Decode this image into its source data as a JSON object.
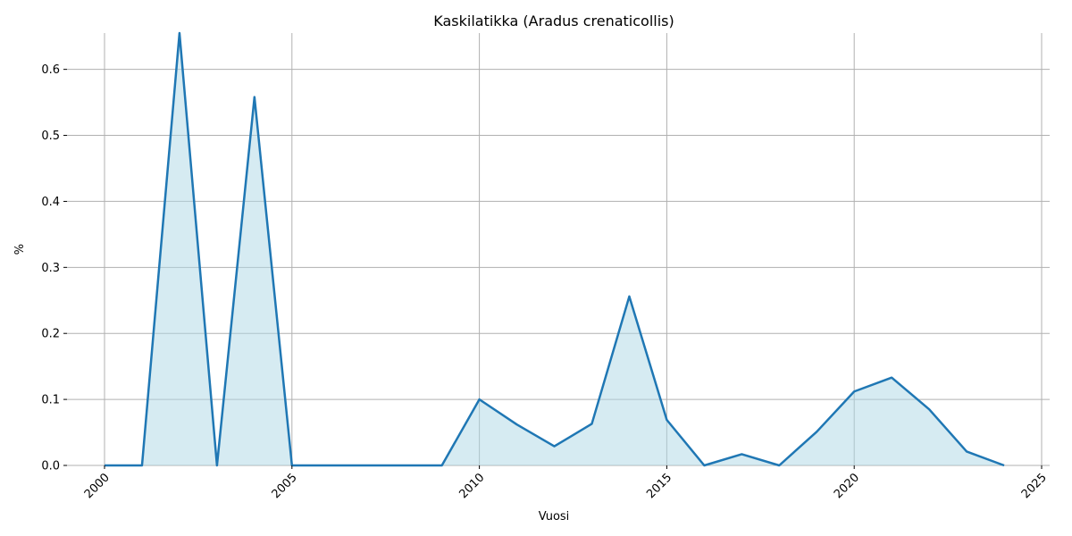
{
  "chart_data": {
    "type": "area",
    "title": "Kaskilatikka (Aradus crenaticollis)",
    "xlabel": "Vuosi",
    "ylabel": "%",
    "xlim": [
      2000,
      2025
    ],
    "ylim": [
      0,
      0.655
    ],
    "xticks": [
      2000,
      2005,
      2010,
      2015,
      2020,
      2025
    ],
    "yticks": [
      0.0,
      0.1,
      0.2,
      0.3,
      0.4,
      0.5,
      0.6
    ],
    "ytick_labels": [
      "0.0",
      "0.1",
      "0.2",
      "0.3",
      "0.4",
      "0.5",
      "0.6"
    ],
    "grid": true,
    "line_color": "#1f77b4",
    "fill_color": "#add8e6",
    "series": [
      {
        "x": [
          2000,
          2001,
          2002,
          2003,
          2004,
          2005,
          2006,
          2007,
          2008,
          2009,
          2010,
          2011,
          2012,
          2013,
          2014,
          2015,
          2016,
          2017,
          2018,
          2019,
          2020,
          2021,
          2022,
          2023,
          2024
        ],
        "values": [
          0,
          0,
          0.655,
          0,
          0.558,
          0,
          0,
          0,
          0,
          0,
          0.1,
          0.062,
          0.029,
          0.063,
          0.256,
          0.069,
          0,
          0.017,
          0,
          0.051,
          0.112,
          0.133,
          0.085,
          0.021,
          0
        ]
      }
    ]
  }
}
